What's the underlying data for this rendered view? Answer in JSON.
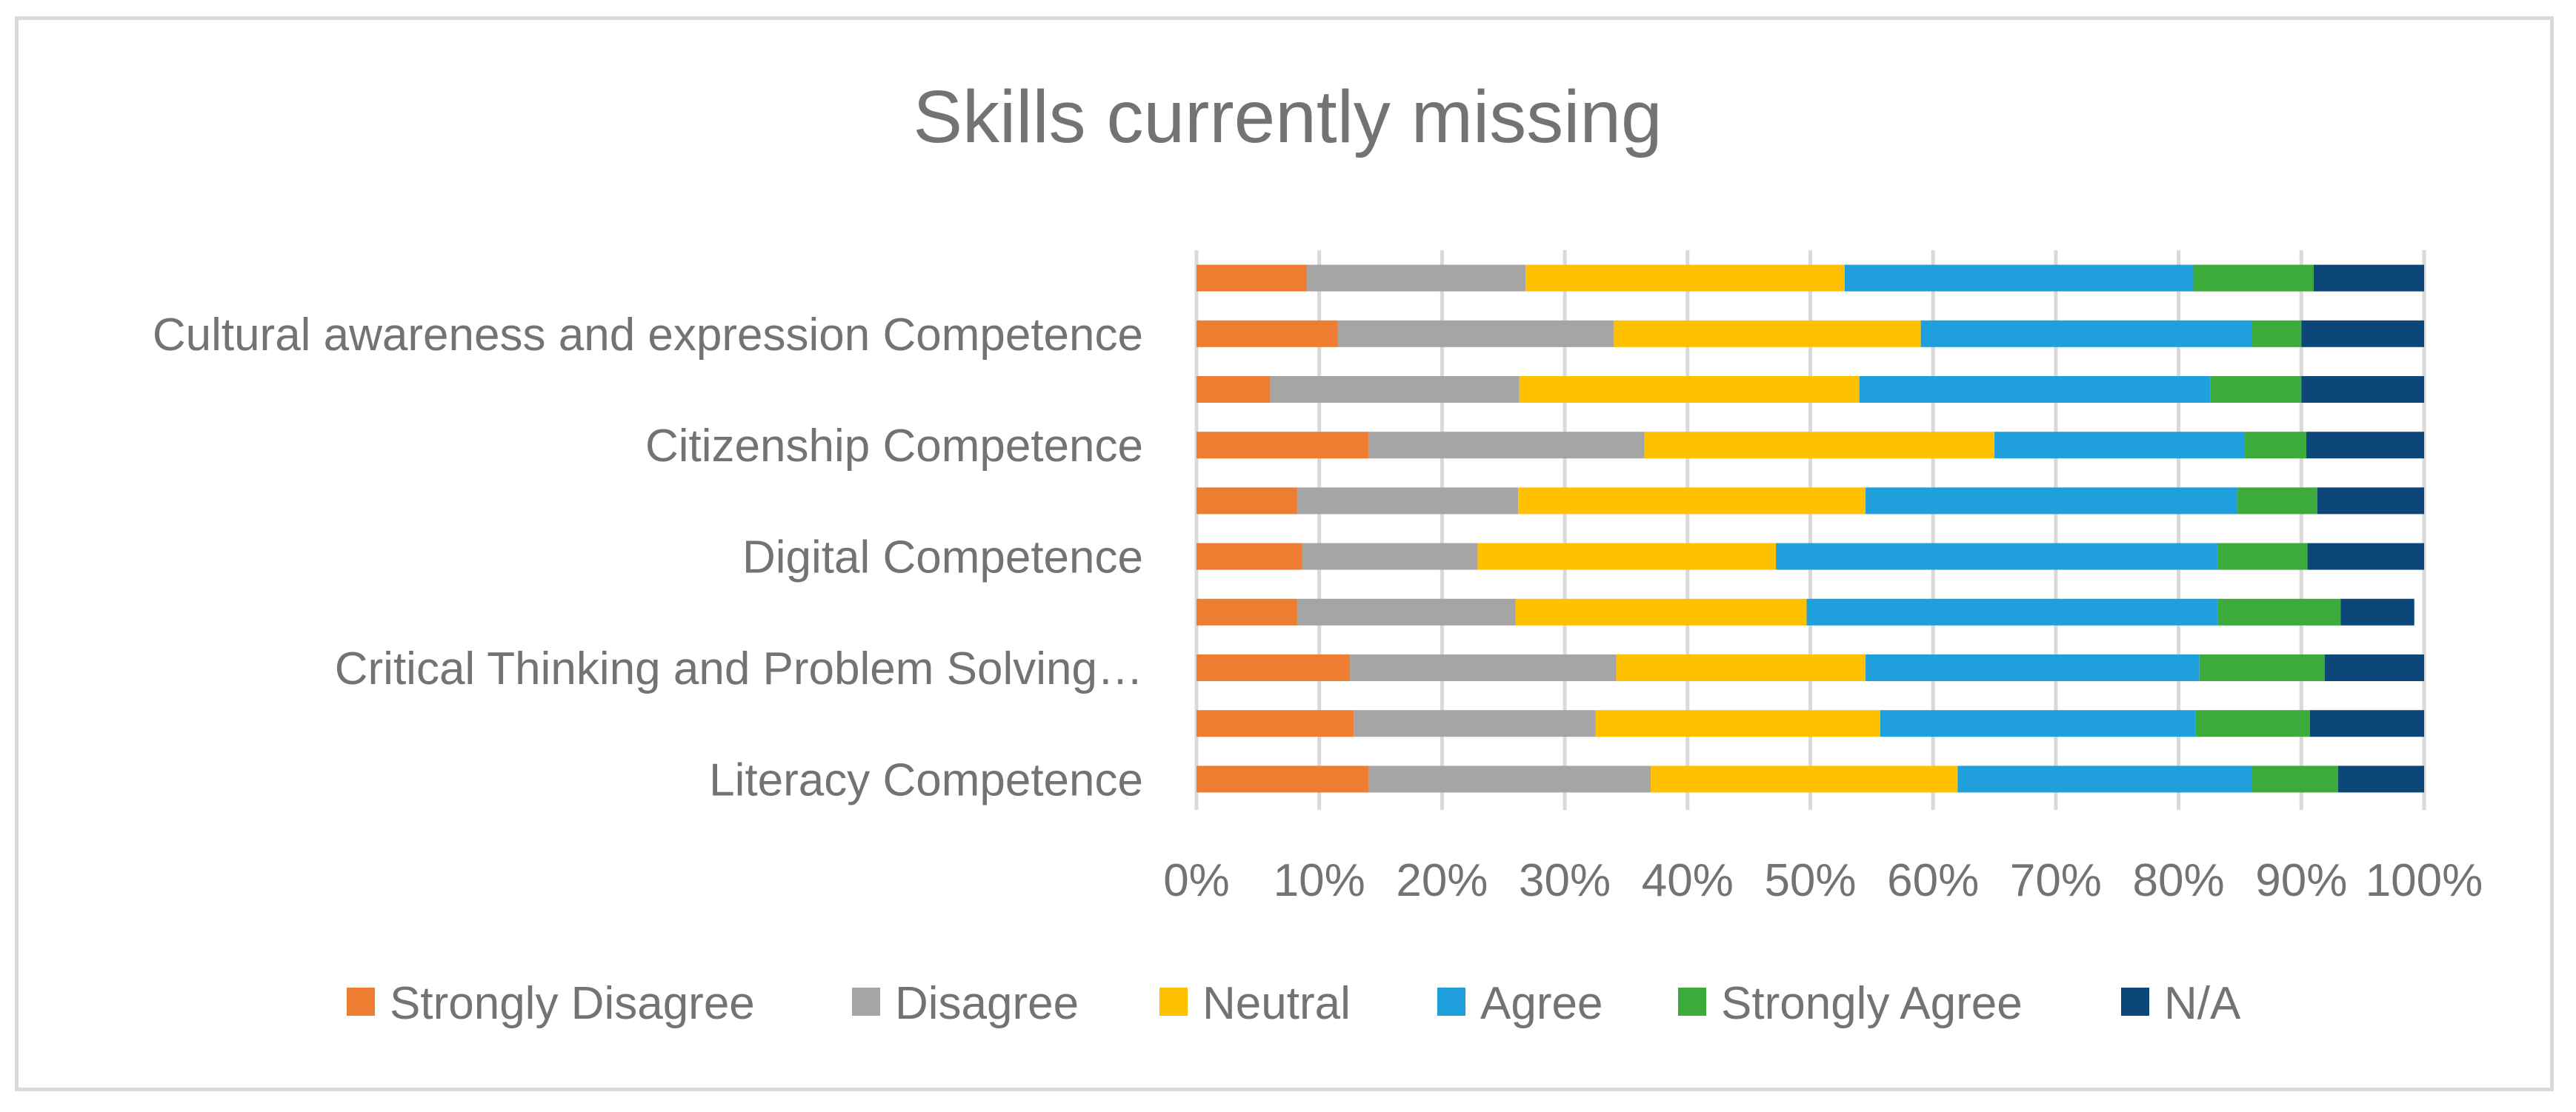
{
  "chart_data": {
    "type": "bar",
    "orientation": "horizontal",
    "stacked": "percent",
    "title": "Skills currently missing",
    "xlabel": "",
    "ylabel": "",
    "xlim": [
      0,
      100
    ],
    "x_ticks": [
      "0%",
      "10%",
      "20%",
      "30%",
      "40%",
      "50%",
      "60%",
      "70%",
      "80%",
      "90%",
      "100%"
    ],
    "grid": true,
    "legend_position": "bottom",
    "categories": [
      {
        "label": ""
      },
      {
        "label": "Cultural awareness and expression Competence"
      },
      {
        "label": ""
      },
      {
        "label": "Citizenship Competence"
      },
      {
        "label": ""
      },
      {
        "label": "Digital Competence"
      },
      {
        "label": ""
      },
      {
        "label": "Critical Thinking and Problem Solving…"
      },
      {
        "label": ""
      },
      {
        "label": "Literacy Competence"
      }
    ],
    "series": [
      {
        "name": "Strongly Disagree",
        "color": "#ed7d31",
        "values": [
          9,
          11.5,
          6,
          14,
          8.2,
          8.6,
          8.2,
          12.5,
          12.8,
          14
        ]
      },
      {
        "name": "Disagree",
        "color": "#a5a5a5",
        "values": [
          17.8,
          22.5,
          20.3,
          22.5,
          18,
          14.3,
          17.8,
          21.7,
          19.7,
          23
        ]
      },
      {
        "name": "Neutral",
        "color": "#ffc000",
        "values": [
          26,
          25,
          27.7,
          28.5,
          28.3,
          24.3,
          23.7,
          20.3,
          23.2,
          25
        ]
      },
      {
        "name": "Agree",
        "color": "#1f9fdc",
        "values": [
          28.4,
          27,
          28.6,
          20.4,
          30.3,
          36,
          33.5,
          27.2,
          25.7,
          24
        ]
      },
      {
        "name": "Strongly Agree",
        "color": "#3cab3c",
        "values": [
          9.8,
          4,
          7.4,
          5,
          6.5,
          7.3,
          10,
          10.2,
          9.3,
          7
        ],
        "_": ""
      },
      {
        "name": "N/A",
        "color": "#0d4679",
        "values": [
          9,
          10,
          10,
          9.6,
          8.7,
          9.5,
          6,
          8.1,
          9.3,
          7
        ]
      }
    ]
  }
}
